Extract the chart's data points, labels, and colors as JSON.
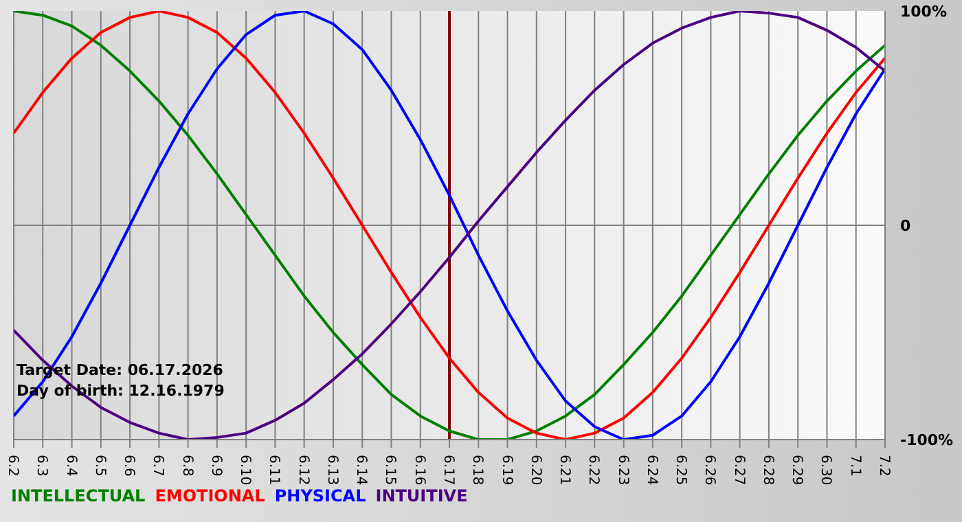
{
  "chart_data": {
    "type": "line",
    "categories": [
      "6.2",
      "6.3",
      "6.4",
      "6.5",
      "6.6",
      "6.7",
      "6.8",
      "6.9",
      "6.10",
      "6.11",
      "6.12",
      "6.13",
      "6.14",
      "6.15",
      "6.16",
      "6.17",
      "6.18",
      "6.19",
      "6.20",
      "6.21",
      "6.22",
      "6.23",
      "6.24",
      "6.25",
      "6.26",
      "6.27",
      "6.28",
      "6.29",
      "6.30",
      "7.1",
      "7.2"
    ],
    "series": [
      {
        "name": "INTELLECTUAL",
        "color": "#008000",
        "values": [
          100,
          98,
          93,
          84,
          72,
          58,
          42,
          24,
          5,
          -14,
          -33,
          -50,
          -65,
          -79,
          -89,
          -96,
          -100,
          -100,
          -96,
          -89,
          -79,
          -65,
          -50,
          -33,
          -14,
          5,
          24,
          42,
          58,
          72,
          84
        ]
      },
      {
        "name": "EMOTIONAL",
        "color": "#ff0000",
        "values": [
          43,
          62,
          78,
          90,
          97,
          100,
          97,
          90,
          78,
          62,
          43,
          22,
          0,
          -22,
          -43,
          -62,
          -78,
          -90,
          -97,
          -100,
          -97,
          -90,
          -78,
          -62,
          -43,
          -22,
          0,
          22,
          43,
          62,
          78
        ]
      },
      {
        "name": "PHYSICAL",
        "color": "#0000ff",
        "values": [
          -89,
          -73,
          -52,
          -27,
          0,
          27,
          52,
          73,
          89,
          98,
          100,
          94,
          82,
          63,
          40,
          14,
          -14,
          -40,
          -63,
          -82,
          -94,
          -100,
          -98,
          -89,
          -73,
          -52,
          -27,
          0,
          27,
          52,
          73
        ]
      },
      {
        "name": "INTUITIVE",
        "color": "#4b0082",
        "values": [
          -49,
          -63,
          -75,
          -85,
          -92,
          -97,
          -100,
          -99,
          -97,
          -91,
          -83,
          -72,
          -60,
          -46,
          -31,
          -15,
          2,
          18,
          34,
          49,
          63,
          75,
          85,
          92,
          97,
          100,
          99,
          97,
          91,
          83,
          72
        ]
      }
    ],
    "ylim": [
      -100,
      100
    ],
    "yticks": [
      {
        "value": -100,
        "label": "-100%"
      },
      0,
      {
        "value": 100,
        "label": "100%"
      }
    ],
    "ref_lines": [
      {
        "axis": "x",
        "value": "6.17",
        "label": null,
        "color": "#800000"
      }
    ],
    "annotations": [
      "Target Date: 06.17.2026",
      "Day of birth: 12.16.1979"
    ],
    "grid": true,
    "legend": "bottom left",
    "marker": "none",
    "line_style": "solid"
  }
}
